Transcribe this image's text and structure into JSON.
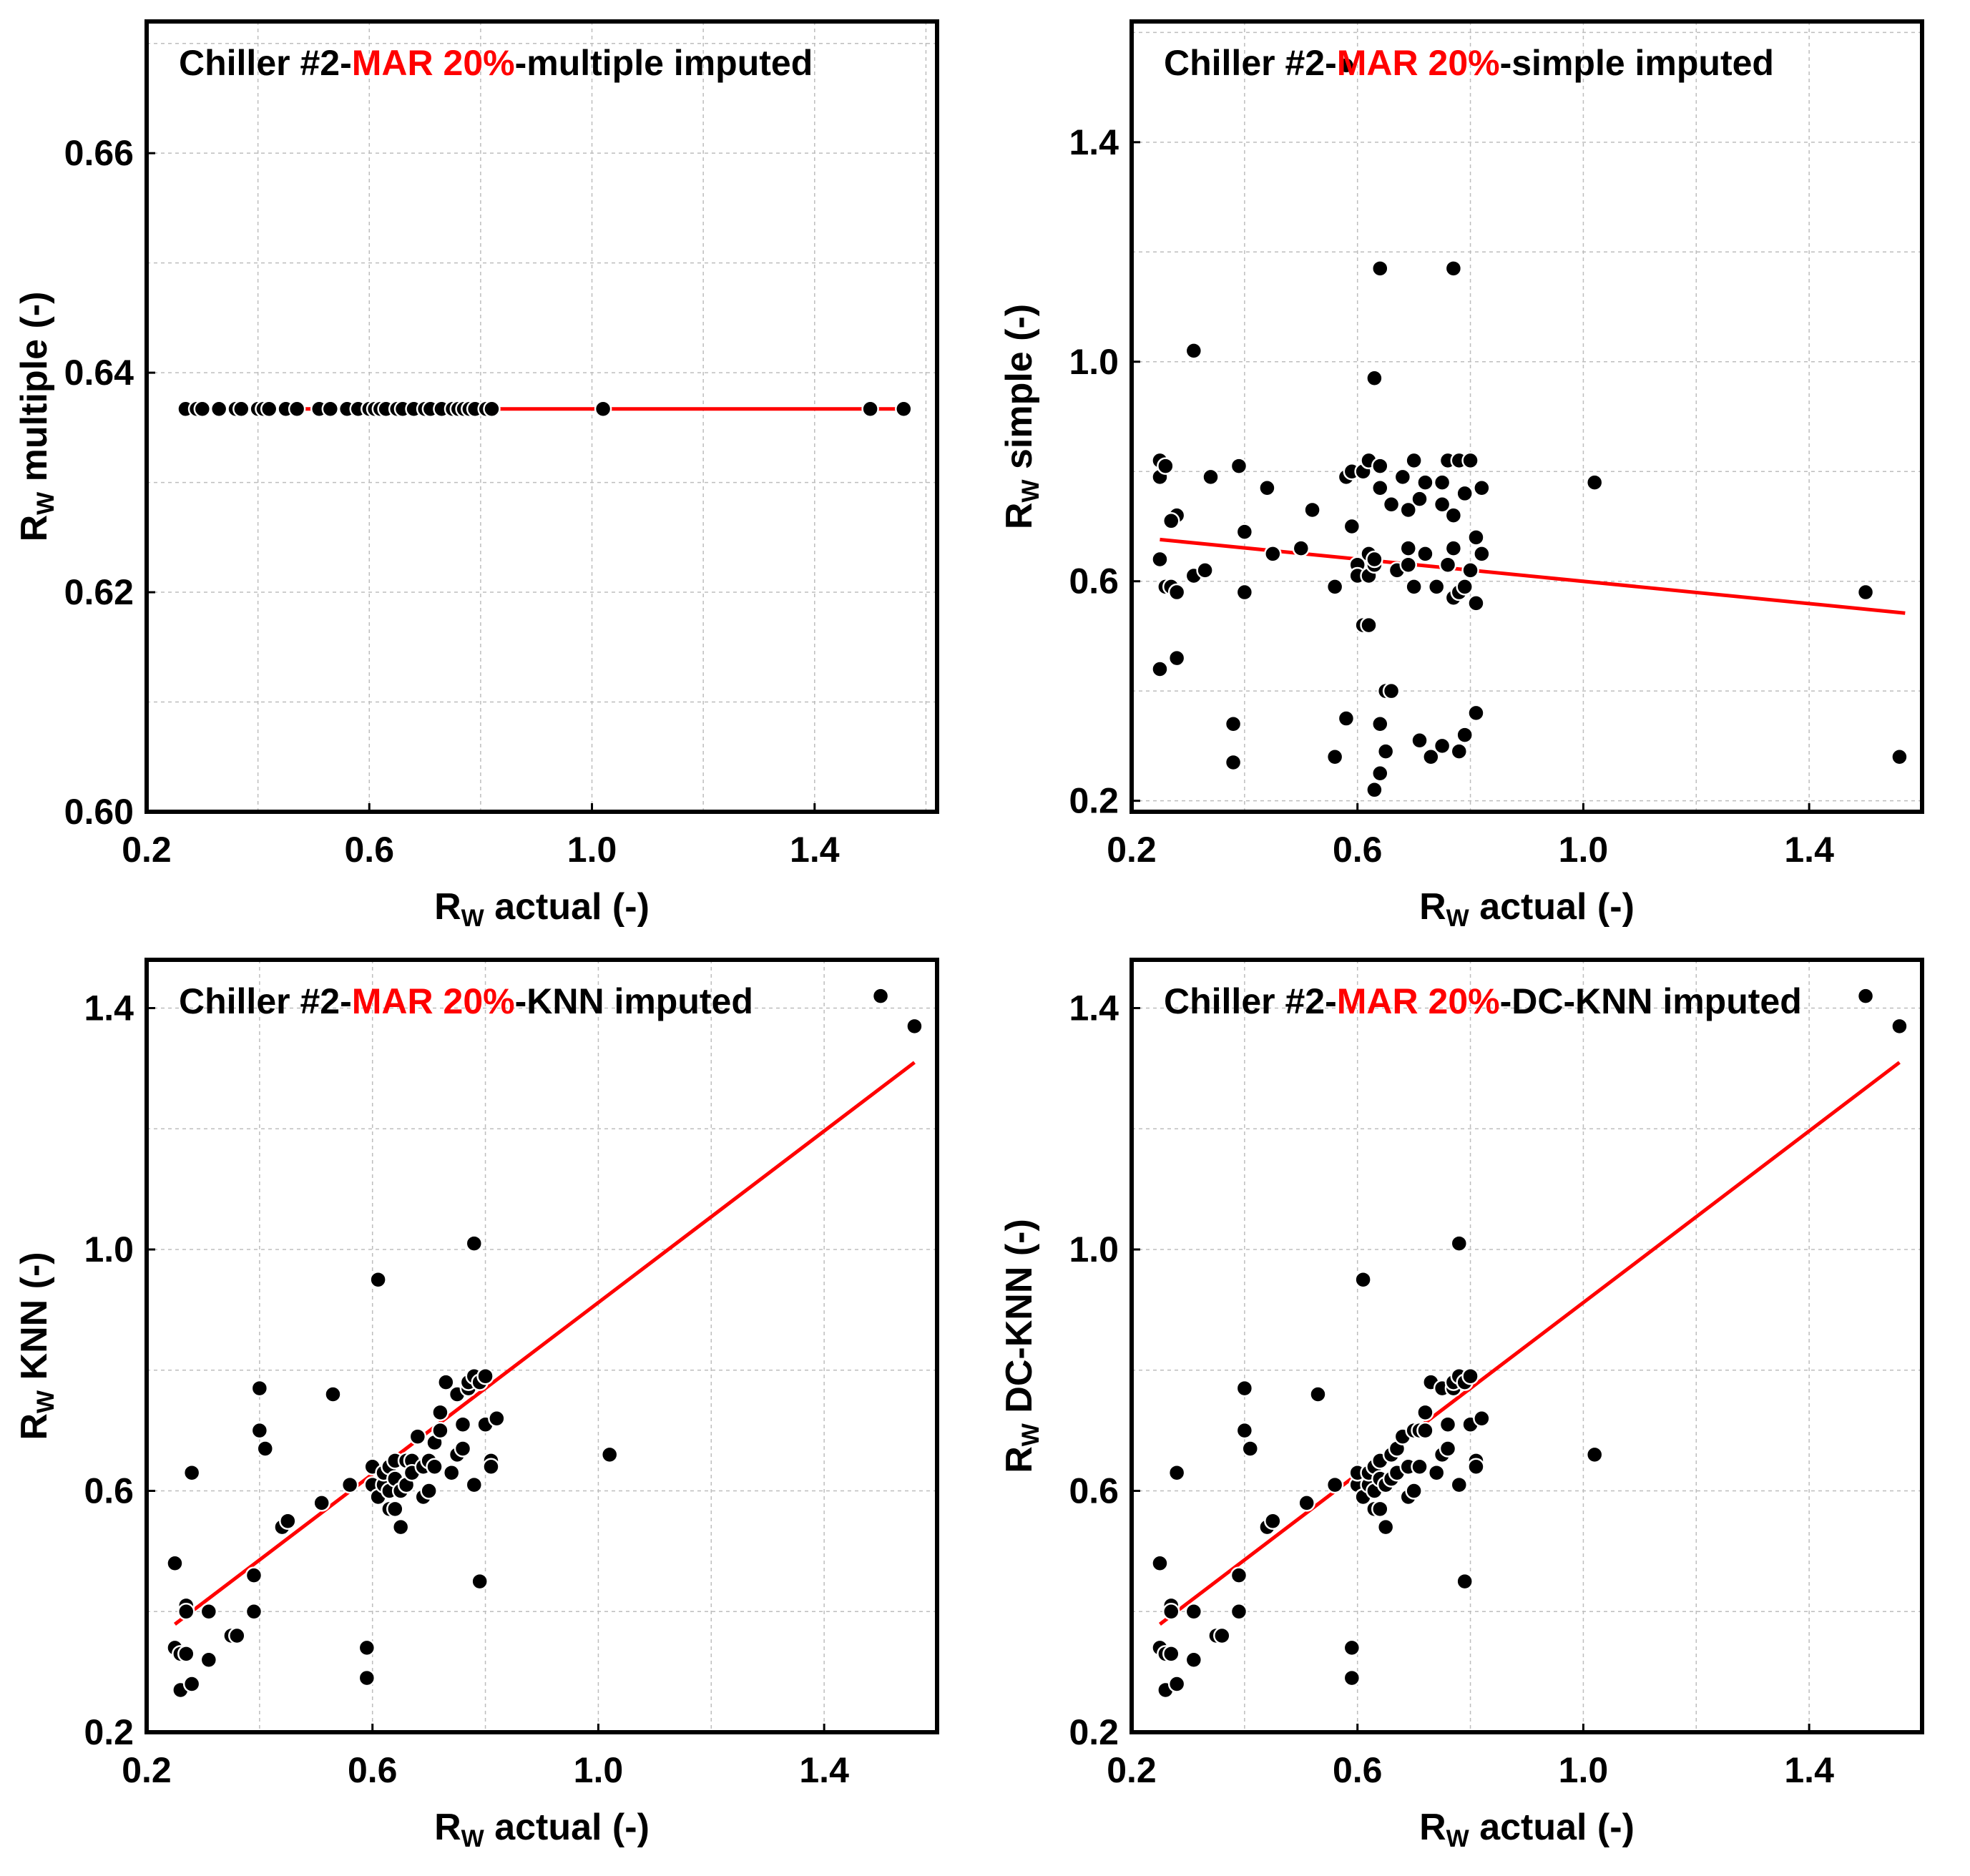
{
  "highlight_color": "#ff0000",
  "point_color": "#000000",
  "chart_data": [
    {
      "type": "scatter",
      "title_parts": [
        "Chiller #2-",
        "MAR 20%",
        "-multiple imputed"
      ],
      "xlabel": {
        "main": "R",
        "sub": "W",
        "rest": " actual (-)"
      },
      "ylabel": {
        "main": "R",
        "sub": "W",
        "rest": " multiple (-)"
      },
      "xlim": [
        0.2,
        1.62
      ],
      "ylim": [
        0.6,
        0.672
      ],
      "xticks": [
        "0.2",
        "0.6",
        "1.0",
        "1.4"
      ],
      "yticks": [
        "0.60",
        "0.62",
        "0.64",
        "0.66"
      ],
      "x": [
        0.27,
        0.29,
        0.3,
        0.33,
        0.36,
        0.37,
        0.4,
        0.41,
        0.42,
        0.45,
        0.47,
        0.51,
        0.53,
        0.56,
        0.58,
        0.6,
        0.61,
        0.62,
        0.63,
        0.65,
        0.66,
        0.68,
        0.7,
        0.71,
        0.73,
        0.75,
        0.76,
        0.77,
        0.78,
        0.79,
        0.81,
        0.82,
        1.02,
        1.5,
        1.56
      ],
      "y": [
        0.6367,
        0.6367,
        0.6367,
        0.6367,
        0.6367,
        0.6367,
        0.6367,
        0.6367,
        0.6367,
        0.6367,
        0.6367,
        0.6367,
        0.6367,
        0.6367,
        0.6367,
        0.6367,
        0.6367,
        0.6367,
        0.6367,
        0.6367,
        0.6367,
        0.6367,
        0.6367,
        0.6367,
        0.6367,
        0.6367,
        0.6367,
        0.6367,
        0.6367,
        0.6367,
        0.6367,
        0.6367,
        0.6367,
        0.6367,
        0.6367
      ],
      "fit_line": {
        "x": [
          0.27,
          1.56
        ],
        "y": [
          0.6367,
          0.6367
        ]
      }
    },
    {
      "type": "scatter",
      "title_parts": [
        "Chiller #2-",
        "MAR 20%",
        "-simple imputed"
      ],
      "xlabel": {
        "main": "R",
        "sub": "W",
        "rest": " actual (-)"
      },
      "ylabel": {
        "main": "R",
        "sub": "W",
        "rest": " simple (-)"
      },
      "xlim": [
        0.2,
        1.6
      ],
      "ylim": [
        0.18,
        1.62
      ],
      "xticks": [
        "0.2",
        "0.6",
        "1.0",
        "1.4"
      ],
      "yticks": [
        "0.2",
        "0.6",
        "1.0",
        "1.4"
      ],
      "x": [
        0.25,
        0.25,
        0.26,
        0.25,
        0.26,
        0.27,
        0.28,
        0.27,
        0.28,
        0.25,
        0.28,
        0.31,
        0.31,
        0.33,
        0.34,
        0.38,
        0.38,
        0.39,
        0.4,
        0.4,
        0.44,
        0.45,
        0.5,
        0.52,
        0.56,
        0.56,
        0.58,
        0.58,
        0.59,
        0.59,
        0.6,
        0.6,
        0.61,
        0.61,
        0.62,
        0.62,
        0.62,
        0.62,
        0.63,
        0.63,
        0.63,
        0.63,
        0.64,
        0.64,
        0.64,
        0.64,
        0.64,
        0.65,
        0.65,
        0.66,
        0.66,
        0.67,
        0.68,
        0.69,
        0.69,
        0.69,
        0.7,
        0.7,
        0.71,
        0.71,
        0.72,
        0.72,
        0.73,
        0.74,
        0.75,
        0.75,
        0.75,
        0.76,
        0.76,
        0.77,
        0.77,
        0.77,
        0.77,
        0.78,
        0.78,
        0.78,
        0.79,
        0.79,
        0.79,
        0.8,
        0.8,
        0.81,
        0.81,
        0.81,
        0.82,
        0.82,
        1.02,
        1.5,
        1.56,
        0.58
      ],
      "y": [
        0.82,
        0.79,
        0.81,
        0.64,
        0.59,
        0.59,
        0.72,
        0.71,
        0.46,
        0.44,
        0.58,
        1.02,
        0.61,
        0.62,
        0.79,
        0.34,
        0.27,
        0.81,
        0.69,
        0.58,
        0.77,
        0.65,
        0.66,
        0.73,
        0.59,
        0.28,
        0.79,
        0.35,
        0.8,
        0.7,
        0.63,
        0.61,
        0.8,
        0.52,
        0.82,
        0.65,
        0.61,
        0.52,
        0.97,
        0.63,
        0.64,
        0.22,
        1.17,
        0.81,
        0.77,
        0.34,
        0.25,
        0.29,
        0.4,
        0.74,
        0.4,
        0.62,
        0.79,
        0.73,
        0.66,
        0.63,
        0.82,
        0.59,
        0.75,
        0.31,
        0.78,
        0.65,
        0.28,
        0.59,
        0.74,
        0.78,
        0.3,
        0.82,
        0.63,
        0.72,
        0.66,
        0.57,
        1.17,
        0.82,
        0.58,
        0.29,
        0.76,
        0.59,
        0.32,
        0.82,
        0.62,
        0.68,
        0.56,
        0.36,
        0.77,
        0.65,
        0.78,
        0.58,
        0.28,
        1.54
      ],
      "fit_line": {
        "x": [
          0.25,
          1.57
        ],
        "y": [
          0.676,
          0.542
        ]
      }
    },
    {
      "type": "scatter",
      "title_parts": [
        "Chiller #2-",
        "MAR 20%",
        "-KNN imputed"
      ],
      "xlabel": {
        "main": "R",
        "sub": "W",
        "rest": " actual (-)"
      },
      "ylabel": {
        "main": "R",
        "sub": "W",
        "rest": " KNN (-)"
      },
      "xlim": [
        0.2,
        1.6
      ],
      "ylim": [
        0.2,
        1.48
      ],
      "xticks": [
        "0.2",
        "0.6",
        "1.0",
        "1.4"
      ],
      "yticks": [
        "0.2",
        "0.6",
        "1.0",
        "1.4"
      ],
      "x": [
        0.25,
        0.25,
        0.26,
        0.27,
        0.27,
        0.26,
        0.27,
        0.28,
        0.28,
        0.31,
        0.31,
        0.35,
        0.36,
        0.39,
        0.39,
        0.4,
        0.4,
        0.41,
        0.44,
        0.45,
        0.51,
        0.53,
        0.56,
        0.59,
        0.59,
        0.6,
        0.6,
        0.6,
        0.61,
        0.61,
        0.62,
        0.62,
        0.63,
        0.63,
        0.63,
        0.64,
        0.64,
        0.64,
        0.65,
        0.65,
        0.66,
        0.66,
        0.67,
        0.67,
        0.68,
        0.69,
        0.69,
        0.7,
        0.7,
        0.71,
        0.71,
        0.72,
        0.72,
        0.73,
        0.74,
        0.75,
        0.75,
        0.76,
        0.76,
        0.77,
        0.77,
        0.78,
        0.78,
        0.78,
        0.79,
        0.79,
        0.8,
        0.8,
        0.81,
        0.81,
        0.82,
        1.02,
        1.5,
        1.56
      ],
      "y": [
        0.48,
        0.34,
        0.33,
        0.41,
        0.4,
        0.27,
        0.33,
        0.28,
        0.63,
        0.4,
        0.32,
        0.36,
        0.36,
        0.46,
        0.4,
        0.77,
        0.7,
        0.67,
        0.54,
        0.55,
        0.58,
        0.76,
        0.61,
        0.34,
        0.29,
        0.61,
        0.64,
        0.64,
        0.95,
        0.59,
        0.61,
        0.63,
        0.64,
        0.6,
        0.57,
        0.65,
        0.62,
        0.57,
        0.6,
        0.54,
        0.65,
        0.61,
        0.65,
        0.63,
        0.69,
        0.64,
        0.59,
        0.65,
        0.6,
        0.68,
        0.64,
        0.73,
        0.7,
        0.78,
        0.63,
        0.76,
        0.66,
        0.71,
        0.67,
        0.77,
        0.78,
        1.01,
        0.61,
        0.79,
        0.78,
        0.45,
        0.79,
        0.71,
        0.65,
        0.64,
        0.72,
        0.66,
        1.42,
        1.37
      ],
      "fit_line": {
        "x": [
          0.25,
          1.56
        ],
        "y": [
          0.379,
          1.31
        ]
      }
    },
    {
      "type": "scatter",
      "title_parts": [
        "Chiller #2-",
        "MAR 20%",
        "-DC-KNN imputed"
      ],
      "xlabel": {
        "main": "R",
        "sub": "W",
        "rest": " actual (-)"
      },
      "ylabel": {
        "main": "R",
        "sub": "W",
        "rest": " DC-KNN (-)"
      },
      "xlim": [
        0.2,
        1.6
      ],
      "ylim": [
        0.2,
        1.48
      ],
      "xticks": [
        "0.2",
        "0.6",
        "1.0",
        "1.4"
      ],
      "yticks": [
        "0.2",
        "0.6",
        "1.0",
        "1.4"
      ],
      "x": [
        0.25,
        0.25,
        0.26,
        0.27,
        0.27,
        0.26,
        0.27,
        0.28,
        0.28,
        0.31,
        0.31,
        0.35,
        0.36,
        0.39,
        0.39,
        0.4,
        0.4,
        0.41,
        0.44,
        0.45,
        0.51,
        0.53,
        0.56,
        0.59,
        0.59,
        0.6,
        0.6,
        0.6,
        0.61,
        0.61,
        0.62,
        0.62,
        0.63,
        0.63,
        0.63,
        0.64,
        0.64,
        0.64,
        0.65,
        0.65,
        0.66,
        0.66,
        0.67,
        0.67,
        0.68,
        0.69,
        0.69,
        0.7,
        0.7,
        0.71,
        0.71,
        0.72,
        0.72,
        0.73,
        0.74,
        0.75,
        0.75,
        0.76,
        0.76,
        0.77,
        0.77,
        0.78,
        0.78,
        0.78,
        0.79,
        0.79,
        0.8,
        0.8,
        0.81,
        0.81,
        0.82,
        1.02,
        1.5,
        1.56
      ],
      "y": [
        0.48,
        0.34,
        0.33,
        0.41,
        0.4,
        0.27,
        0.33,
        0.28,
        0.63,
        0.4,
        0.32,
        0.36,
        0.36,
        0.46,
        0.4,
        0.77,
        0.7,
        0.67,
        0.54,
        0.55,
        0.58,
        0.76,
        0.61,
        0.34,
        0.29,
        0.61,
        0.63,
        0.63,
        0.95,
        0.59,
        0.61,
        0.63,
        0.64,
        0.6,
        0.57,
        0.65,
        0.62,
        0.57,
        0.61,
        0.54,
        0.66,
        0.62,
        0.67,
        0.63,
        0.69,
        0.64,
        0.59,
        0.7,
        0.6,
        0.7,
        0.64,
        0.73,
        0.7,
        0.78,
        0.63,
        0.77,
        0.66,
        0.71,
        0.67,
        0.77,
        0.78,
        1.01,
        0.61,
        0.79,
        0.78,
        0.45,
        0.79,
        0.71,
        0.65,
        0.64,
        0.72,
        0.66,
        1.42,
        1.37
      ],
      "fit_line": {
        "x": [
          0.25,
          1.56
        ],
        "y": [
          0.379,
          1.31
        ]
      }
    }
  ]
}
